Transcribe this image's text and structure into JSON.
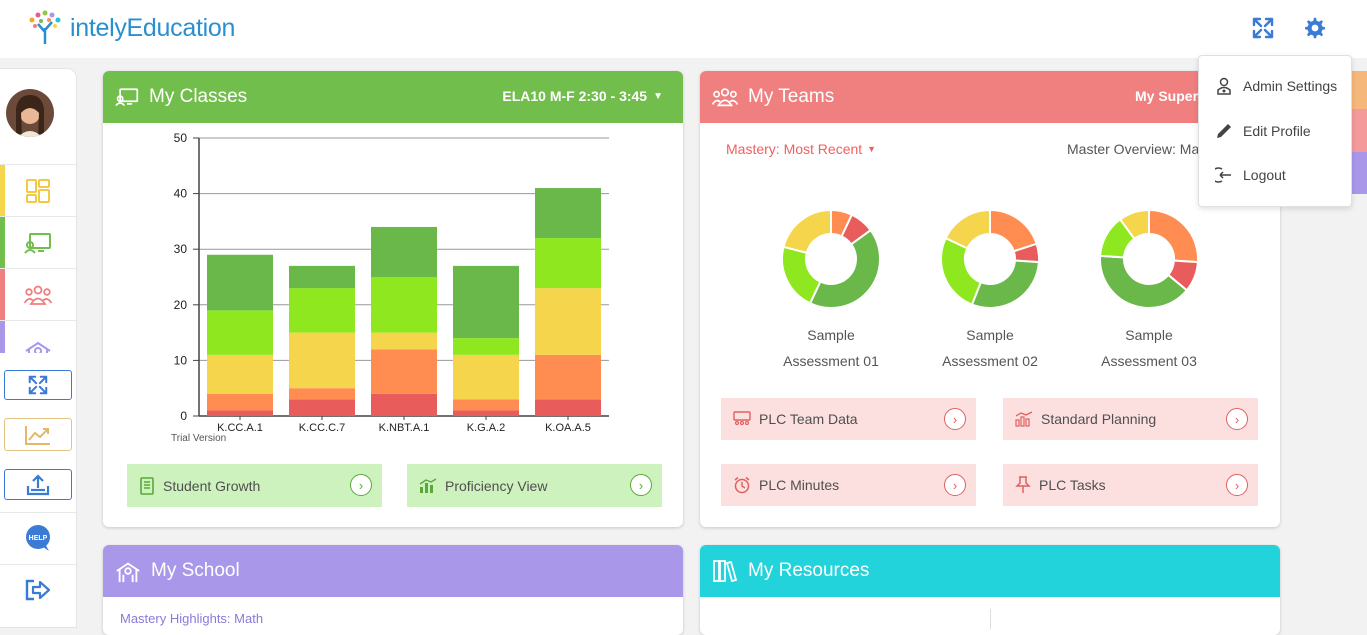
{
  "app": {
    "brand": "intelyEducation",
    "colors": {
      "blue": "#2a8fcf",
      "green": "#72be4c",
      "red": "#f07f7f",
      "purple": "#a998e9",
      "teal": "#22d3dc",
      "yellow": "#f5d54b"
    }
  },
  "header": {
    "fullscreen_icon": "expand-icon",
    "settings_icon": "gear-icon"
  },
  "user_menu": {
    "items": [
      {
        "label": "Admin Settings",
        "icon": "user-badge-icon"
      },
      {
        "label": "Edit Profile",
        "icon": "pencil-icon"
      },
      {
        "label": "Logout",
        "icon": "logout-icon"
      }
    ]
  },
  "sidebar": {
    "tabs": [
      "dashboard-icon",
      "classes-icon",
      "teams-icon",
      "school-icon"
    ],
    "buttons": [
      "expand-icon",
      "growth-chart-icon",
      "upload-icon",
      "help-icon",
      "sign-out-icon"
    ],
    "help_text": "HELP"
  },
  "classes": {
    "title": "My Classes",
    "selector": "ELA10 M-F 2:30 - 3:45",
    "trial_label": "Trial Version",
    "links": [
      {
        "label": "Student Growth",
        "icon": "book-icon"
      },
      {
        "label": "Proficiency View",
        "icon": "bar-chart-icon"
      }
    ]
  },
  "teams": {
    "title": "My Teams",
    "selector": "My Super T",
    "mastery_filter": "Mastery: Most Recent",
    "overview_label": "Master Overview: Mar",
    "assessments": [
      {
        "line1": "Sample",
        "line2": "Assessment 01"
      },
      {
        "line1": "Sample",
        "line2": "Assessment 02"
      },
      {
        "line1": "Sample",
        "line2": "Assessment 03"
      }
    ],
    "links": [
      {
        "label": "PLC Team Data",
        "icon": "team-data-icon"
      },
      {
        "label": "Standard Planning",
        "icon": "planning-chart-icon"
      },
      {
        "label": "PLC Minutes",
        "icon": "alarm-clock-icon"
      },
      {
        "label": "PLC Tasks",
        "icon": "pin-icon"
      }
    ]
  },
  "school": {
    "title": "My School",
    "subtitle_cut": "Mastery Highlights: Math"
  },
  "resources": {
    "title": "My Resources"
  },
  "chart_data": [
    {
      "type": "bar",
      "stacked": true,
      "categories": [
        "K.CC.A.1",
        "K.CC.C.7",
        "K.NBT.A.1",
        "K.G.A.2",
        "K.OA.A.5"
      ],
      "ylim": [
        0,
        50
      ],
      "yticks": [
        0,
        10,
        20,
        30,
        40,
        50
      ],
      "grid": true,
      "series": [
        {
          "color": "#e85c5c",
          "values": [
            1,
            3,
            4,
            1,
            3
          ]
        },
        {
          "color": "#ff8c50",
          "values": [
            3,
            2,
            8,
            2,
            8
          ]
        },
        {
          "color": "#f5d54b",
          "values": [
            7,
            10,
            3,
            8,
            12
          ]
        },
        {
          "color": "#8fe81f",
          "values": [
            8,
            8,
            10,
            3,
            9
          ]
        },
        {
          "color": "#6ab74a",
          "values": [
            10,
            4,
            9,
            13,
            9
          ]
        }
      ]
    },
    {
      "type": "pie",
      "label": "Sample Assessment 01",
      "slices": [
        {
          "color": "#ff8c50",
          "value": 7
        },
        {
          "color": "#e85c5c",
          "value": 8
        },
        {
          "color": "#6ab74a",
          "value": 42
        },
        {
          "color": "#8fe81f",
          "value": 22
        },
        {
          "color": "#f5d54b",
          "value": 21
        }
      ]
    },
    {
      "type": "pie",
      "label": "Sample Assessment 02",
      "slices": [
        {
          "color": "#ff8c50",
          "value": 20
        },
        {
          "color": "#e85c5c",
          "value": 6
        },
        {
          "color": "#6ab74a",
          "value": 30
        },
        {
          "color": "#8fe81f",
          "value": 26
        },
        {
          "color": "#f5d54b",
          "value": 18
        }
      ]
    },
    {
      "type": "pie",
      "label": "Sample Assessment 03",
      "slices": [
        {
          "color": "#ff8c50",
          "value": 26
        },
        {
          "color": "#e85c5c",
          "value": 10
        },
        {
          "color": "#6ab74a",
          "value": 40
        },
        {
          "color": "#8fe81f",
          "value": 14
        },
        {
          "color": "#f5d54b",
          "value": 10
        }
      ]
    }
  ]
}
